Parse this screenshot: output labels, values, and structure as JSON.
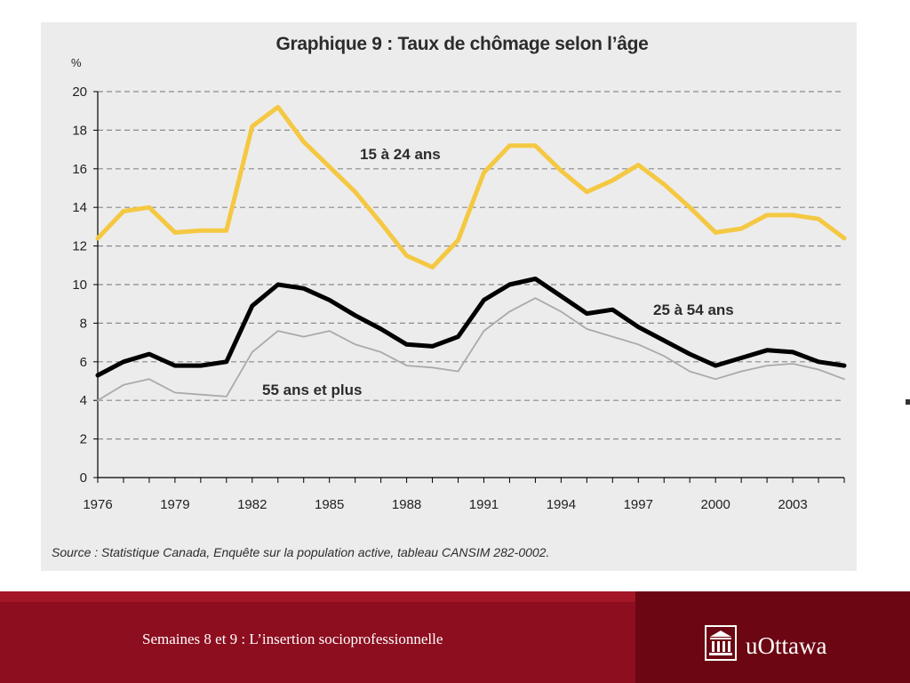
{
  "slide": {
    "footer_caption": "Semaines 8 et 9 : L’insertion socioprofessionnelle",
    "logo_text": "uOttawa",
    "logo_icon": "building-icon",
    "colors": {
      "footer": "#8c0e1f",
      "footer_dark": "#6b0612"
    }
  },
  "chart_data": {
    "type": "line",
    "title": "Graphique 9 : Taux de chômage selon l’âge",
    "ylabel": "%",
    "xlabel": "",
    "ylim": [
      0,
      20
    ],
    "xlim": [
      1976,
      2005
    ],
    "yticks": [
      "0",
      "2",
      "4",
      "6",
      "8",
      "10",
      "12",
      "14",
      "16",
      "18",
      "20"
    ],
    "xticks": [
      "1976",
      "1979",
      "1982",
      "1985",
      "1988",
      "1991",
      "1994",
      "1997",
      "2000",
      "2003"
    ],
    "grid": true,
    "source": "Source : Statistique Canada, Enquête sur la population active, tableau CANSIM 282-0002.",
    "x": [
      1976,
      1977,
      1978,
      1979,
      1980,
      1981,
      1982,
      1983,
      1984,
      1985,
      1986,
      1987,
      1988,
      1989,
      1990,
      1991,
      1992,
      1993,
      1994,
      1995,
      1996,
      1997,
      1998,
      1999,
      2000,
      2001,
      2002,
      2003,
      2004,
      2005
    ],
    "series": [
      {
        "name": "15 à 24 ans",
        "color": "#f5c842",
        "values": [
          12.4,
          13.8,
          14.0,
          12.7,
          12.8,
          12.8,
          18.2,
          19.2,
          17.4,
          16.1,
          14.8,
          13.2,
          11.5,
          10.9,
          12.3,
          15.8,
          17.2,
          17.2,
          15.9,
          14.8,
          15.4,
          16.2,
          15.2,
          14.0,
          12.7,
          12.9,
          13.6,
          13.6,
          13.4,
          12.4
        ]
      },
      {
        "name": "25 à 54 ans",
        "color": "#000000",
        "values": [
          5.3,
          6.0,
          6.4,
          5.8,
          5.8,
          6.0,
          8.9,
          10.0,
          9.8,
          9.2,
          8.4,
          7.7,
          6.9,
          6.8,
          7.3,
          9.2,
          10.0,
          10.3,
          9.4,
          8.5,
          8.7,
          7.8,
          7.1,
          6.4,
          5.8,
          6.2,
          6.6,
          6.5,
          6.0,
          5.8
        ]
      },
      {
        "name": "55 ans et plus",
        "color": "#aaaaaa",
        "values": [
          4.0,
          4.8,
          5.1,
          4.4,
          4.3,
          4.2,
          6.5,
          7.6,
          7.3,
          7.6,
          6.9,
          6.5,
          5.8,
          5.7,
          5.5,
          7.6,
          8.6,
          9.3,
          8.6,
          7.7,
          7.3,
          6.9,
          6.3,
          5.5,
          5.1,
          5.5,
          5.8,
          5.9,
          5.6,
          5.1
        ]
      }
    ]
  }
}
